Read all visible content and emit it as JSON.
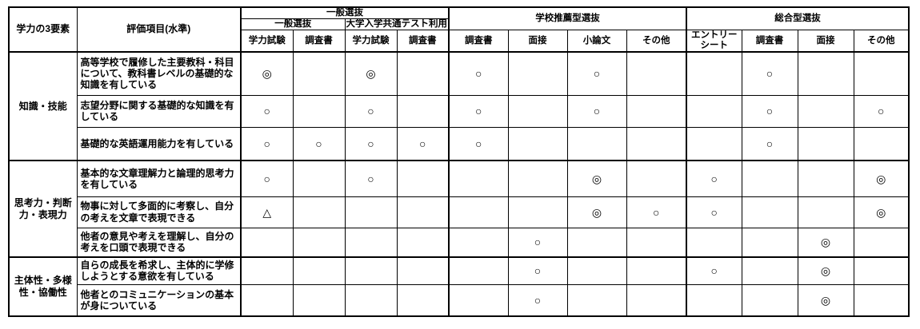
{
  "table": {
    "header": {
      "three_elements": "学力の3要素",
      "evaluation_item": "評価項目(水準)",
      "general": {
        "label": "一般選抜",
        "subgroups": [
          {
            "label": "一般選抜",
            "columns": [
              "学力試験",
              "調査書"
            ]
          },
          {
            "label": "大学入学共通テスト利用",
            "columns": [
              "学力試験",
              "調査書"
            ]
          }
        ]
      },
      "recommendation": {
        "label": "学校推薦型選抜",
        "columns": [
          "調査書",
          "面接",
          "小論文",
          "その他"
        ]
      },
      "comprehensive": {
        "label": "総合型選抜",
        "columns": [
          "エントリーシート",
          "調査書",
          "面接",
          "その他"
        ]
      }
    },
    "symbols": {
      "double_circle": "◎",
      "circle": "○",
      "triangle": "△"
    },
    "row_groups": [
      {
        "label": "知識・技能",
        "rows": [
          {
            "text": "高等学校で履修した主要教科・科目について、教科書レベルの基礎的な知識を有している",
            "marks": [
              "◎",
              "",
              "◎",
              "",
              "○",
              "",
              "○",
              "",
              "",
              "○",
              "",
              ""
            ]
          },
          {
            "text": "志望分野に関する基礎的な知識を有している",
            "marks": [
              "○",
              "",
              "○",
              "",
              "○",
              "",
              "○",
              "",
              "",
              "○",
              "",
              "○"
            ]
          },
          {
            "text": "基礎的な英語運用能力を有している",
            "marks": [
              "○",
              "○",
              "○",
              "○",
              "○",
              "",
              "",
              "",
              "",
              "○",
              "",
              ""
            ]
          }
        ]
      },
      {
        "label": "思考力・判断力・表現力",
        "rows": [
          {
            "text": "基本的な文章理解力と論理的思考力を有している",
            "marks": [
              "○",
              "",
              "○",
              "",
              "",
              "",
              "◎",
              "",
              "○",
              "",
              "",
              "◎"
            ]
          },
          {
            "text": "物事に対して多面的に考察し、自分の考えを文章で表現できる",
            "marks": [
              "△",
              "",
              "",
              "",
              "",
              "",
              "◎",
              "○",
              "○",
              "",
              "",
              "◎"
            ]
          },
          {
            "text": "他者の意見や考えを理解し、自分の考えを口頭で表現できる",
            "marks": [
              "",
              "",
              "",
              "",
              "",
              "○",
              "",
              "",
              "",
              "",
              "◎",
              ""
            ]
          }
        ]
      },
      {
        "label": "主体性・多様性・協働性",
        "rows": [
          {
            "text": "自らの成長を希求し、主体的に学修しようとする意欲を有している",
            "marks": [
              "",
              "",
              "",
              "",
              "",
              "○",
              "",
              "",
              "○",
              "",
              "◎",
              ""
            ]
          },
          {
            "text": "他者とのコミュニケーションの基本が身についている",
            "marks": [
              "",
              "",
              "",
              "",
              "",
              "○",
              "",
              "",
              "",
              "",
              "◎",
              ""
            ]
          }
        ]
      }
    ]
  }
}
